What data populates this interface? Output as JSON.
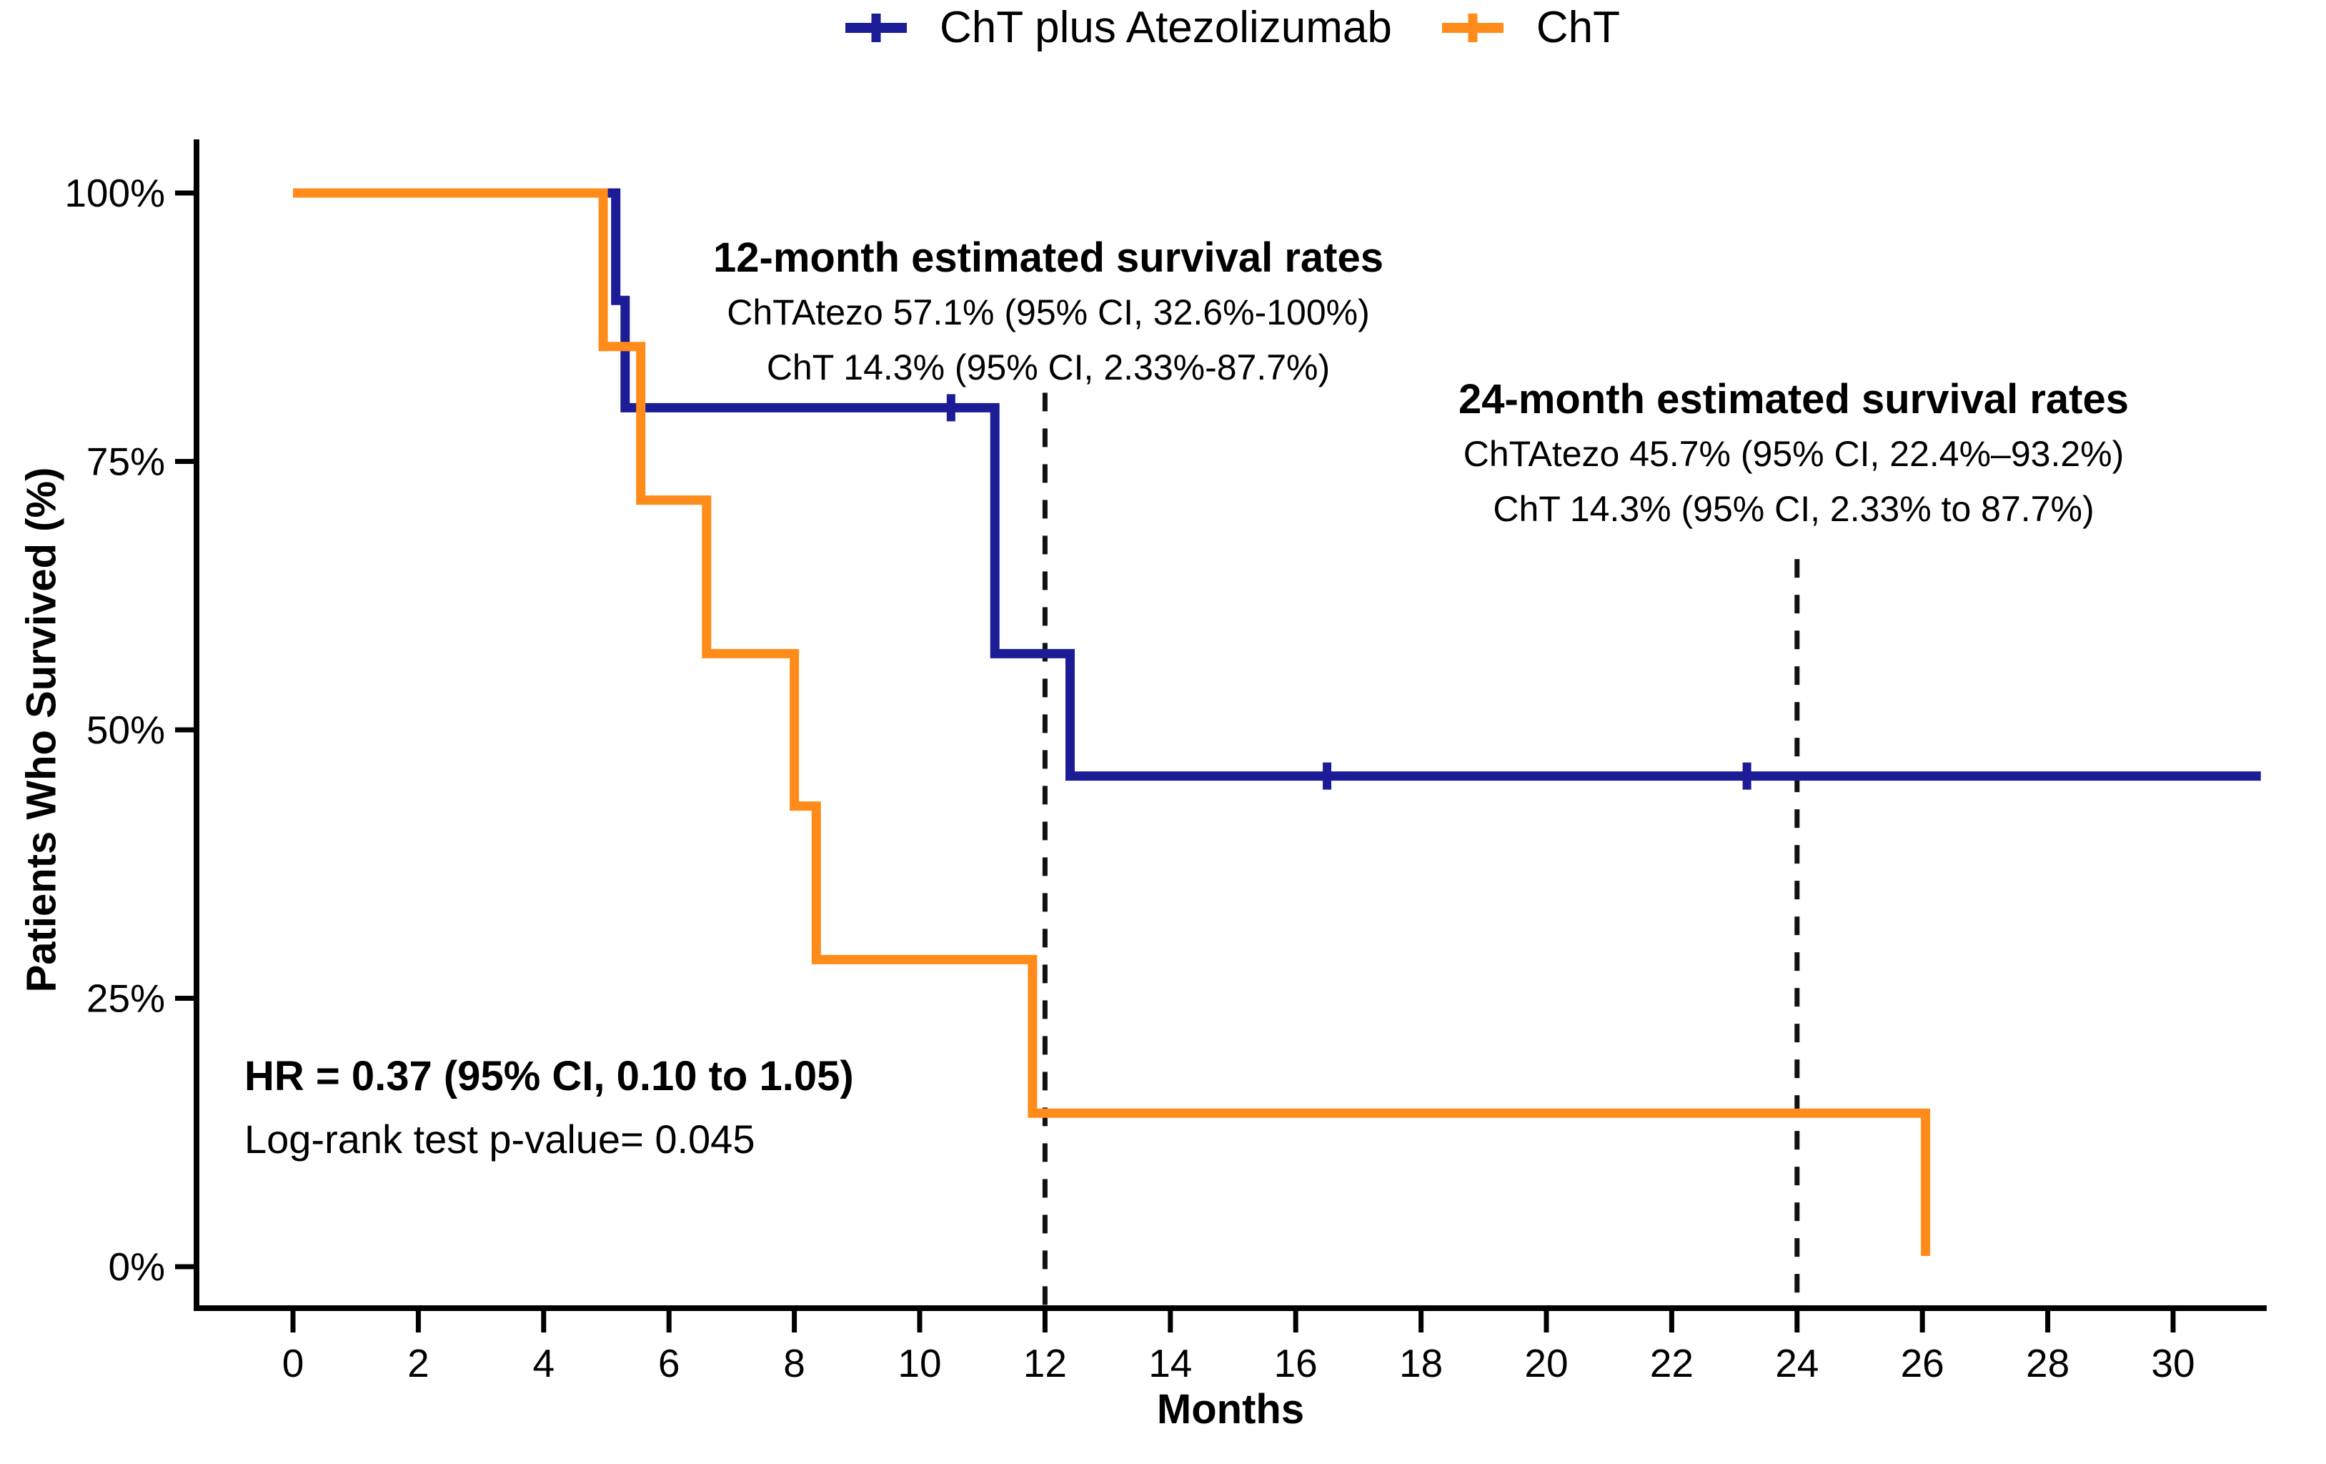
{
  "legend": {
    "items": [
      {
        "label": "ChT plus Atezolizumab",
        "color": "#1c1c96"
      },
      {
        "label": "ChT",
        "color": "#ff8c1a"
      }
    ]
  },
  "annotations": {
    "twelve_month": {
      "title": "12-month estimated survival rates",
      "line1": "ChTAtezo 57.1% (95% CI, 32.6%-100%)",
      "line2": "ChT 14.3% (95% CI, 2.33%-87.7%)"
    },
    "twenty_four_month": {
      "title": "24-month estimated survival rates",
      "line1": "ChTAtezo 45.7% (95% CI, 22.4%–93.2%)",
      "line2": "ChT 14.3% (95% CI, 2.33% to 87.7%)"
    },
    "stats": {
      "line1": "HR = 0.37 (95% CI, 0.10 to 1.05)",
      "line2": "Log-rank test p-value= 0.045"
    }
  },
  "chart_data": {
    "type": "line",
    "subtype": "kaplan-meier-step",
    "title": "",
    "xlabel": "Months",
    "ylabel": "Patients Who Survived (%)",
    "xlim": [
      0,
      31.5
    ],
    "ylim": [
      0,
      100
    ],
    "grid": false,
    "legend_position": "top-center",
    "x_ticks": [
      0,
      2,
      4,
      6,
      8,
      10,
      12,
      14,
      16,
      18,
      20,
      22,
      24,
      26,
      28,
      30
    ],
    "y_ticks": [
      {
        "value": 100,
        "label": "100%"
      },
      {
        "value": 75,
        "label": "75%"
      },
      {
        "value": 50,
        "label": "50%"
      },
      {
        "value": 25,
        "label": "25%"
      },
      {
        "value": 0,
        "label": "0%"
      }
    ],
    "series": [
      {
        "name": "ChT plus Atezolizumab",
        "color": "#1c1c96",
        "steps": [
          [
            0,
            100
          ],
          [
            5.15,
            100
          ],
          [
            5.15,
            90
          ],
          [
            5.3,
            90
          ],
          [
            5.3,
            80
          ],
          [
            11.2,
            80
          ],
          [
            11.2,
            57.1
          ],
          [
            12.4,
            57.1
          ],
          [
            12.4,
            45.7
          ],
          [
            31.4,
            45.7
          ]
        ],
        "censor_marks": [
          [
            10.5,
            80
          ],
          [
            16.5,
            45.7
          ],
          [
            23.2,
            45.7
          ]
        ],
        "survival_12_month": "57.1%",
        "survival_24_month": "45.7%"
      },
      {
        "name": "ChT",
        "color": "#ff8c1a",
        "steps": [
          [
            0,
            100
          ],
          [
            4.95,
            100
          ],
          [
            4.95,
            85.7
          ],
          [
            5.55,
            85.7
          ],
          [
            5.55,
            71.4
          ],
          [
            6.6,
            71.4
          ],
          [
            6.6,
            57.1
          ],
          [
            8.0,
            57.1
          ],
          [
            8.0,
            42.9
          ],
          [
            8.35,
            42.9
          ],
          [
            8.35,
            28.6
          ],
          [
            11.8,
            28.6
          ],
          [
            11.8,
            14.3
          ],
          [
            26.05,
            14.3
          ],
          [
            26.05,
            1.0
          ]
        ],
        "censor_marks": [],
        "survival_12_month": "14.3%",
        "survival_24_month": "14.3%"
      }
    ],
    "reference_lines": [
      {
        "x": 12,
        "style": "dashed",
        "color": "#111111",
        "y_top_pct": 81.4
      },
      {
        "x": 24,
        "style": "dashed",
        "color": "#111111",
        "y_top_pct": 65.9
      }
    ]
  }
}
